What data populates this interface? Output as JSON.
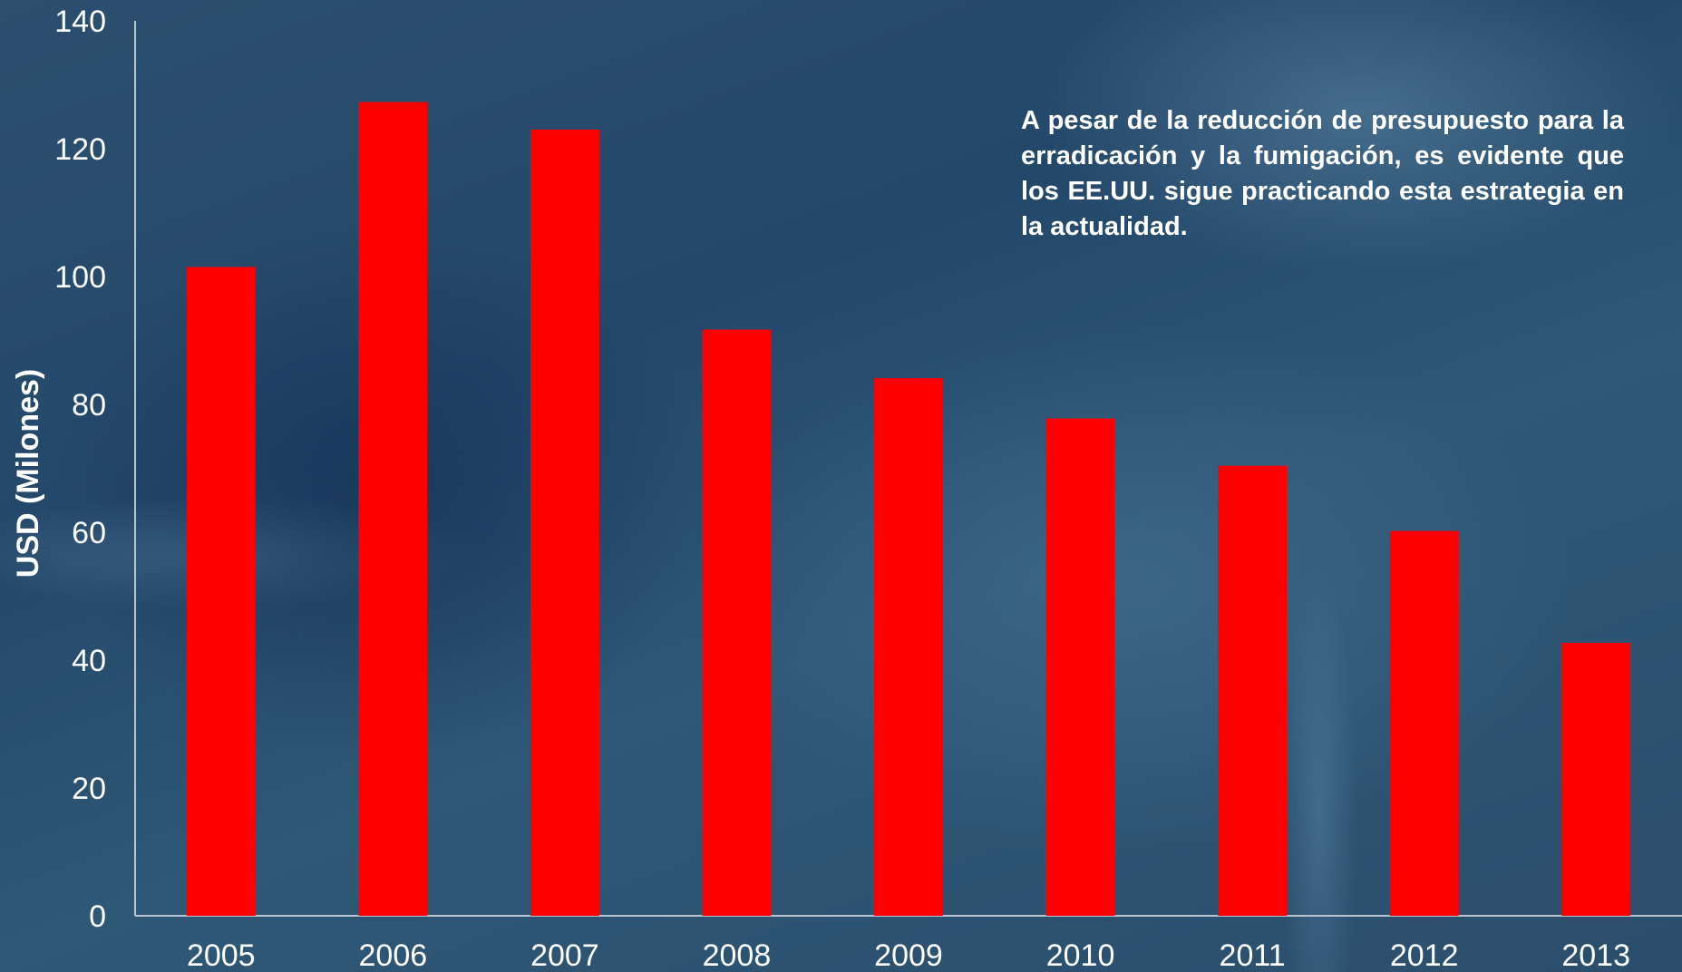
{
  "chart_data": {
    "type": "bar",
    "categories": [
      "2005",
      "2006",
      "2007",
      "2008",
      "2009",
      "2010",
      "2011",
      "2012",
      "2013"
    ],
    "values": [
      101.5,
      127.3,
      123,
      91.7,
      84.1,
      77.8,
      70.4,
      60.2,
      42.7
    ],
    "title": "",
    "xlabel": "",
    "ylabel": "USD (Milones)",
    "ylim": [
      0,
      140
    ],
    "yticks": [
      0,
      20,
      40,
      60,
      80,
      100,
      120,
      140
    ],
    "grid": false,
    "bar_color": "#ff0000",
    "axis_color": "#b8c4cf",
    "text_color": "#ffffff"
  },
  "annotation": {
    "text": "A pesar de la reducción de presupuesto para la erradicación y la fumigación, es evidente que los EE.UU. sigue practicando esta estrategia en la actualidad."
  }
}
